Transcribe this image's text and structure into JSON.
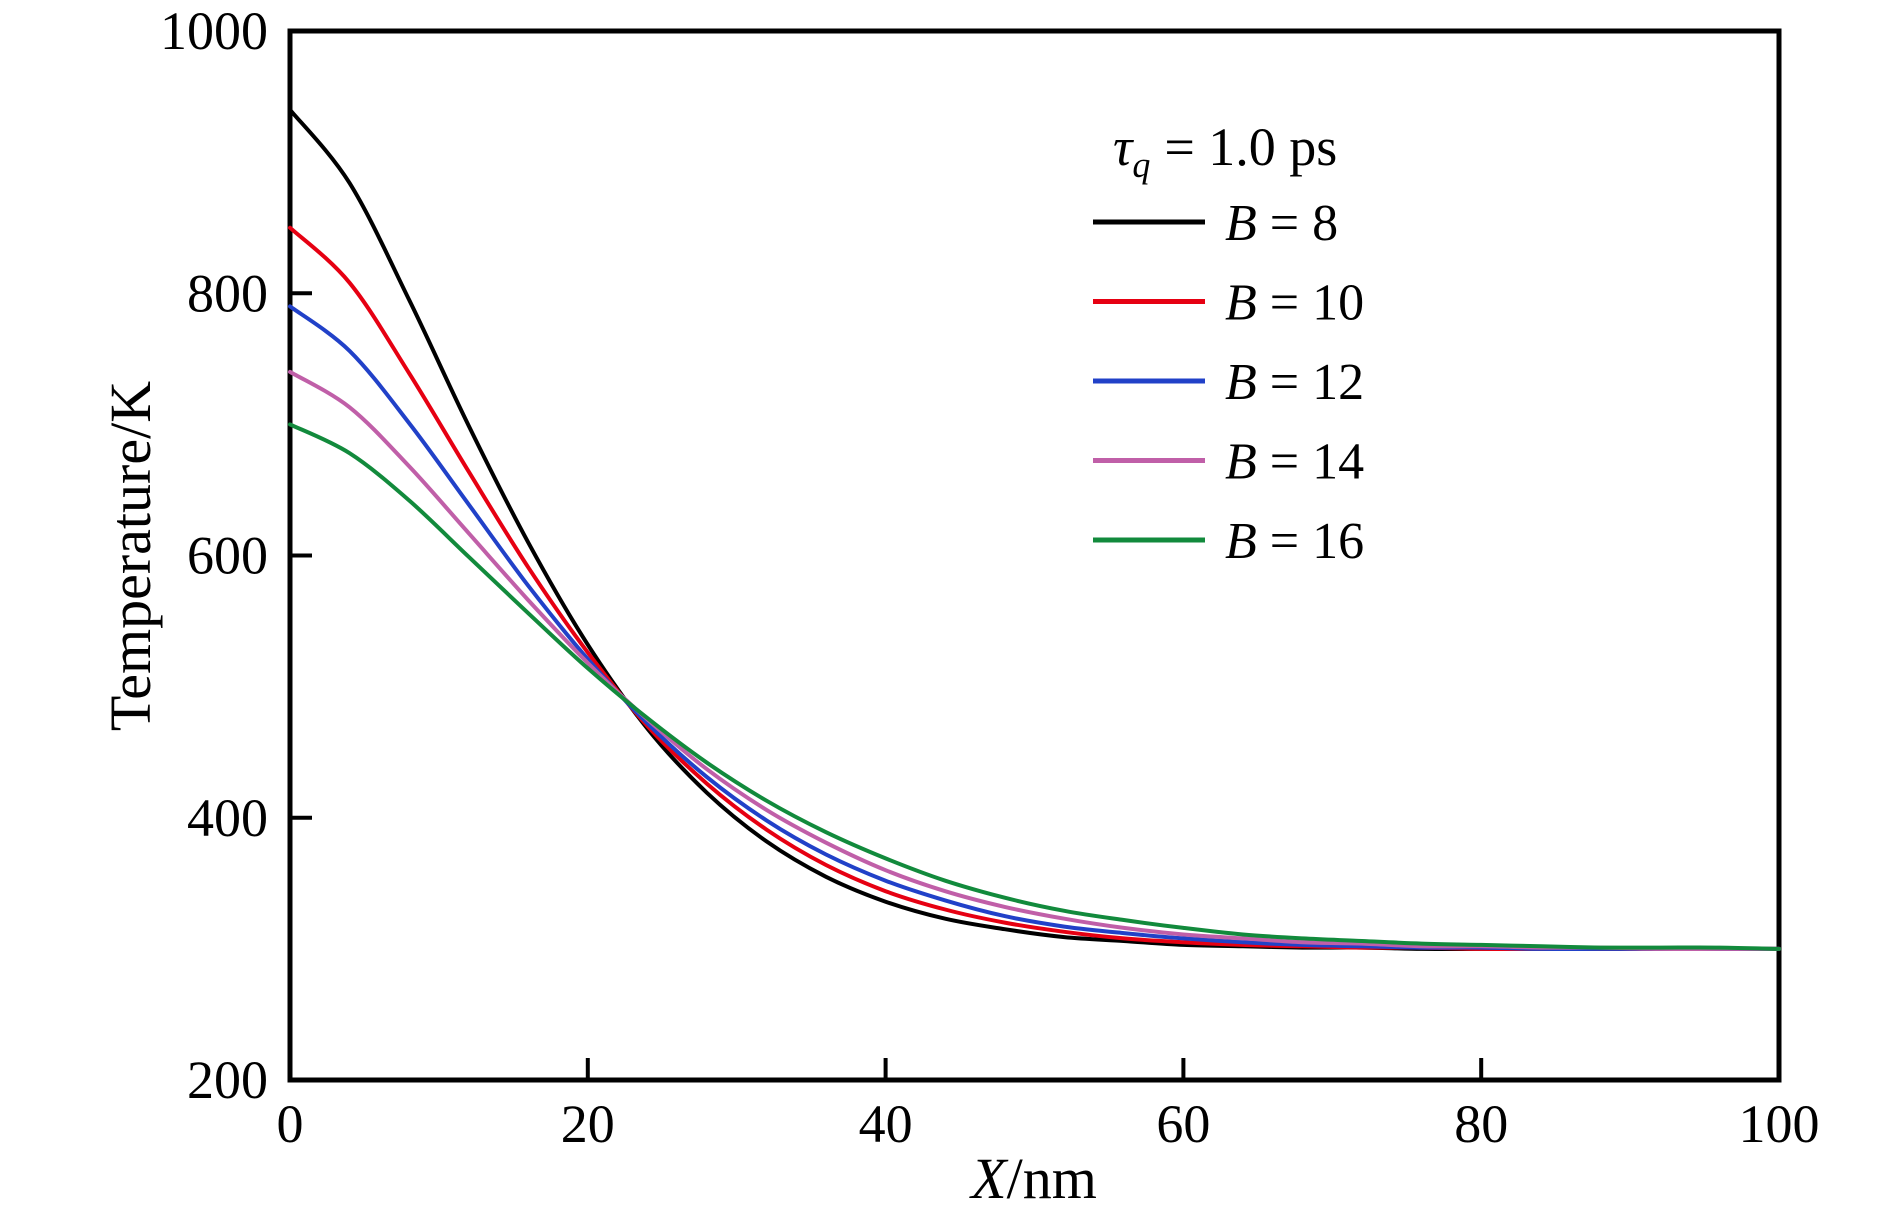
{
  "figure": {
    "background": "#ffffff",
    "axis_color": "#000000"
  },
  "chart_data": {
    "type": "line",
    "title": "",
    "xlabel": "X/nm",
    "xlabel_var": "X",
    "xlabel_unit": "/nm",
    "ylabel": "Temperature/K",
    "xlim": [
      0,
      100
    ],
    "ylim": [
      200,
      1000
    ],
    "x_ticks": [
      0,
      20,
      40,
      60,
      80,
      100
    ],
    "y_ticks": [
      200,
      400,
      600,
      800,
      1000
    ],
    "grid": false,
    "legend_position": "upper right",
    "legend_title": "τq = 1.0 ps",
    "legend_title_tau": "τ",
    "legend_title_sub": "q",
    "legend_title_rest": "= 1.0 ps",
    "x": [
      0,
      4,
      8,
      12,
      16,
      20,
      24,
      28,
      32,
      36,
      40,
      44,
      48,
      52,
      56,
      60,
      64,
      68,
      72,
      76,
      80,
      84,
      88,
      92,
      96,
      100
    ],
    "series": [
      {
        "name": "B = 8",
        "var": "B",
        "value": "8",
        "color": "#000000",
        "values": [
          940,
          884,
          795,
          699,
          610,
          532,
          468,
          419,
          382,
          355,
          336,
          323,
          315,
          309,
          306,
          303,
          302,
          301,
          301,
          300,
          300,
          300,
          300,
          300,
          300,
          300
        ]
      },
      {
        "name": "B = 10",
        "var": "B",
        "value": "10",
        "color": "#e60012",
        "values": [
          850,
          808,
          739,
          664,
          591,
          526,
          470,
          426,
          391,
          364,
          344,
          330,
          320,
          313,
          308,
          305,
          303,
          302,
          301,
          301,
          300,
          300,
          300,
          300,
          300,
          300
        ]
      },
      {
        "name": "B = 12",
        "var": "B",
        "value": "12",
        "color": "#2141c8",
        "values": [
          790,
          756,
          701,
          639,
          577,
          521,
          472,
          431,
          398,
          372,
          352,
          337,
          325,
          317,
          312,
          308,
          305,
          303,
          302,
          301,
          301,
          300,
          300,
          300,
          300,
          300
        ]
      },
      {
        "name": "B = 14",
        "var": "B",
        "value": "14",
        "color": "#c05fa8",
        "values": [
          740,
          713,
          668,
          617,
          566,
          518,
          475,
          437,
          406,
          381,
          360,
          344,
          332,
          323,
          316,
          311,
          308,
          305,
          304,
          302,
          302,
          301,
          301,
          300,
          300,
          300
        ]
      },
      {
        "name": "B = 16",
        "var": "B",
        "value": "16",
        "color": "#128a3c",
        "values": [
          700,
          678,
          642,
          599,
          556,
          514,
          476,
          442,
          413,
          389,
          369,
          352,
          339,
          329,
          322,
          316,
          311,
          308,
          306,
          304,
          303,
          302,
          301,
          301,
          301,
          300
        ]
      }
    ]
  }
}
